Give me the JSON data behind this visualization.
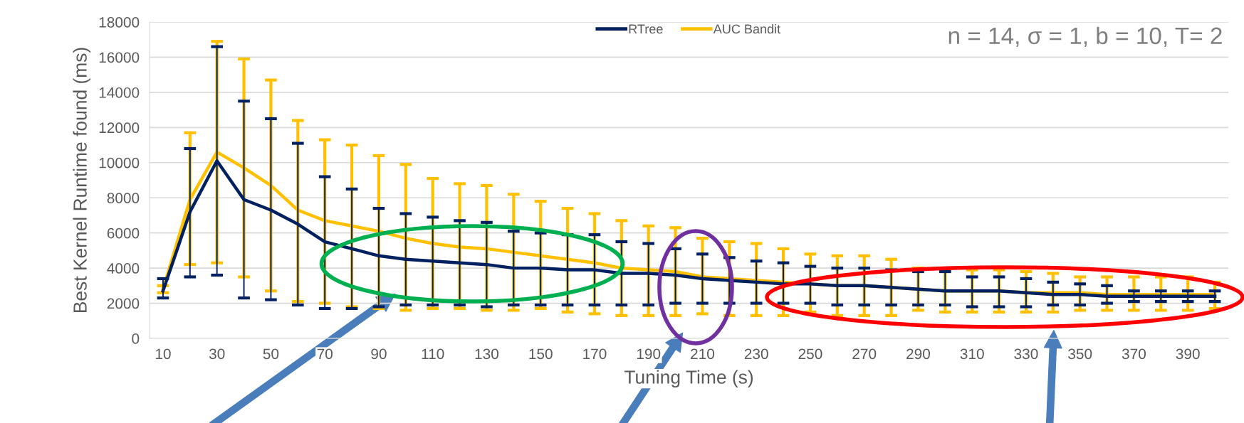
{
  "chart_data": {
    "type": "line",
    "xlabel": "Tuning Time (s)",
    "ylabel": "Best Kernel Runtime found (ms)",
    "annotations": [
      "n = 14, σ = 1, b = 10, T= 2"
    ],
    "categories": [
      "10",
      null,
      "30",
      null,
      "50",
      null,
      "70",
      null,
      "90",
      null,
      "110",
      null,
      "130",
      null,
      "150",
      null,
      "170",
      null,
      "190",
      null,
      "210",
      null,
      "230",
      null,
      "250",
      null,
      "270",
      null,
      "290",
      null,
      "310",
      null,
      "330",
      null,
      "350",
      null,
      "370",
      null,
      "390",
      null
    ],
    "series": [
      {
        "name": "RTree",
        "color": "#002060",
        "values": [
          2700,
          7200,
          10100,
          7900,
          7300,
          6500,
          5500,
          5100,
          4700,
          4500,
          4400,
          4300,
          4200,
          4000,
          4000,
          3900,
          3900,
          3700,
          3700,
          3600,
          3400,
          3300,
          3200,
          3100,
          3100,
          3000,
          3000,
          2900,
          2800,
          2700,
          2700,
          2700,
          2600,
          2500,
          2500,
          2400,
          2400,
          2400,
          2400,
          2400
        ],
        "errors": [
          [
            2300,
            3400
          ],
          [
            3500,
            10800
          ],
          [
            3600,
            16600
          ],
          [
            2300,
            13500
          ],
          [
            2200,
            12500
          ],
          [
            1900,
            11100
          ],
          [
            1700,
            9200
          ],
          [
            1700,
            8500
          ],
          [
            1800,
            7400
          ],
          [
            1900,
            7100
          ],
          [
            1900,
            6900
          ],
          [
            1900,
            6700
          ],
          [
            1800,
            6600
          ],
          [
            1900,
            6100
          ],
          [
            1900,
            6000
          ],
          [
            1900,
            5900
          ],
          [
            1900,
            5900
          ],
          [
            1900,
            5500
          ],
          [
            1900,
            5400
          ],
          [
            2000,
            5100
          ],
          [
            2000,
            4800
          ],
          [
            2000,
            4600
          ],
          [
            2000,
            4400
          ],
          [
            2000,
            4300
          ],
          [
            2000,
            4100
          ],
          [
            1900,
            4000
          ],
          [
            1900,
            4000
          ],
          [
            1900,
            3900
          ],
          [
            1900,
            3800
          ],
          [
            1900,
            3800
          ],
          [
            1800,
            3500
          ],
          [
            1800,
            3500
          ],
          [
            1800,
            3400
          ],
          [
            1900,
            3200
          ],
          [
            1900,
            3100
          ],
          [
            2000,
            3000
          ],
          [
            2100,
            2700
          ],
          [
            2100,
            2700
          ],
          [
            2100,
            2700
          ],
          [
            2100,
            2700
          ]
        ]
      },
      {
        "name": "AUC Bandit",
        "color": "#ffc000",
        "values": [
          2800,
          7900,
          10600,
          9700,
          8700,
          7300,
          6700,
          6400,
          6100,
          5700,
          5400,
          5200,
          5100,
          4900,
          4700,
          4500,
          4300,
          4000,
          3900,
          3800,
          3500,
          3400,
          3300,
          3200,
          3100,
          3000,
          3000,
          2900,
          2800,
          2700,
          2700,
          2700,
          2600,
          2600,
          2600,
          2500,
          2500,
          2500,
          2500,
          2500
        ],
        "errors": [
          [
            2600,
            3000
          ],
          [
            4200,
            11700
          ],
          [
            4300,
            16900
          ],
          [
            3500,
            15900
          ],
          [
            2700,
            14700
          ],
          [
            2100,
            12400
          ],
          [
            2000,
            11300
          ],
          [
            1800,
            11000
          ],
          [
            1700,
            10400
          ],
          [
            1600,
            9900
          ],
          [
            1700,
            9100
          ],
          [
            1700,
            8800
          ],
          [
            1600,
            8700
          ],
          [
            1600,
            8200
          ],
          [
            1700,
            7800
          ],
          [
            1500,
            7400
          ],
          [
            1400,
            7100
          ],
          [
            1300,
            6700
          ],
          [
            1300,
            6400
          ],
          [
            1300,
            6300
          ],
          [
            1400,
            5700
          ],
          [
            1300,
            5500
          ],
          [
            1300,
            5400
          ],
          [
            1300,
            5100
          ],
          [
            1500,
            4800
          ],
          [
            1300,
            4700
          ],
          [
            1300,
            4700
          ],
          [
            1300,
            4500
          ],
          [
            1600,
            4000
          ],
          [
            1500,
            3900
          ],
          [
            1500,
            3900
          ],
          [
            1500,
            3900
          ],
          [
            1500,
            3800
          ],
          [
            1500,
            3700
          ],
          [
            1600,
            3500
          ],
          [
            1600,
            3500
          ],
          [
            1600,
            3500
          ],
          [
            1600,
            3500
          ],
          [
            1600,
            3500
          ],
          [
            1700,
            3200
          ]
        ]
      }
    ],
    "ylim": [
      0,
      18000
    ],
    "yticks": [
      0,
      2000,
      4000,
      6000,
      8000,
      10000,
      12000,
      14000,
      16000,
      18000
    ],
    "grid": "y",
    "legend": "top",
    "marker": "none",
    "line_style": "solid"
  }
}
